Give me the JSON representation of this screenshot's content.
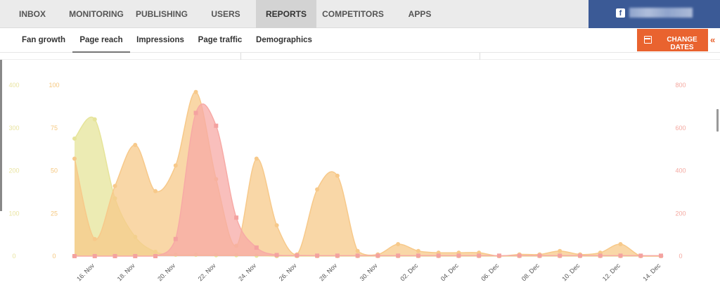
{
  "top_nav": {
    "tabs": [
      {
        "label": "INBOX",
        "active": false
      },
      {
        "label": "MONITORING",
        "active": false
      },
      {
        "label": "PUBLISHING",
        "active": false
      },
      {
        "label": "USERS",
        "active": false
      },
      {
        "label": "REPORTS",
        "active": true
      },
      {
        "label": "COMPETITORS",
        "active": false
      },
      {
        "label": "APPS",
        "active": false
      }
    ],
    "account": {
      "icon": "facebook-icon",
      "color": "#3b5a96"
    }
  },
  "sub_nav": {
    "tabs": [
      {
        "label": "Fan growth",
        "active": false
      },
      {
        "label": "Page reach",
        "active": true
      },
      {
        "label": "Impressions",
        "active": false
      },
      {
        "label": "Page traffic",
        "active": false
      },
      {
        "label": "Demographics",
        "active": false
      }
    ],
    "change_dates_label": "CHANGE DATES",
    "change_dates_icon": "calendar-icon",
    "collapse_label": "«",
    "accent": "#e9632f"
  },
  "chart_data": {
    "type": "area",
    "x": [
      "15. Nov",
      "16. Nov",
      "17. Nov",
      "18. Nov",
      "19. Nov",
      "20. Nov",
      "21. Nov",
      "22. Nov",
      "23. Nov",
      "24. Nov",
      "25. Nov",
      "26. Nov",
      "27. Nov",
      "28. Nov",
      "29. Nov",
      "30. Nov",
      "01. Dec",
      "02. Dec",
      "03. Dec",
      "04. Dec",
      "05. Dec",
      "06. Dec",
      "07. Dec",
      "08. Dec",
      "09. Dec",
      "10. Dec",
      "11. Dec",
      "12. Dec",
      "13. Dec",
      "14. Dec"
    ],
    "x_tick_labels": [
      "16. Nov",
      "18. Nov",
      "20. Nov",
      "22. Nov",
      "24. Nov",
      "26. Nov",
      "28. Nov",
      "30. Nov",
      "02. Dec",
      "04. Dec",
      "06. Dec",
      "08. Dec",
      "10. Dec",
      "12. Dec",
      "14. Dec"
    ],
    "axes": {
      "y_left_outer": {
        "ticks": [
          "0",
          "100",
          "200",
          "300",
          "400"
        ],
        "max": 400,
        "color": "#e9e4a0"
      },
      "y_left_inner": {
        "ticks": [
          "0",
          "25",
          "50",
          "75",
          "100"
        ],
        "max": 100,
        "color": "#f5c77e"
      },
      "y_right": {
        "ticks": [
          "0",
          "200",
          "400",
          "600",
          "800"
        ],
        "max": 800,
        "color": "#f4a8a0"
      }
    },
    "series": [
      {
        "axis": "y_left_outer",
        "color": "#e6e49a",
        "marker": "circle",
        "values": [
          275,
          320,
          135,
          45,
          10,
          3,
          3,
          2,
          2,
          1,
          0,
          0,
          0,
          0,
          0,
          0,
          0,
          0,
          0,
          0,
          0,
          0,
          0,
          0,
          0,
          0,
          0,
          0,
          0,
          0
        ]
      },
      {
        "axis": "y_left_inner",
        "color": "#f7c98a",
        "marker": "circle",
        "values": [
          57,
          10,
          41,
          65,
          38,
          53,
          96,
          45,
          6,
          57,
          18,
          1,
          39,
          47,
          3,
          1,
          7,
          3,
          2,
          2,
          2,
          0,
          1,
          1,
          3,
          1,
          2,
          7,
          0,
          0
        ]
      },
      {
        "axis": "y_right",
        "color": "#f7aaa6",
        "marker": "square",
        "values": [
          0,
          0,
          0,
          0,
          0,
          80,
          670,
          610,
          180,
          40,
          5,
          3,
          2,
          2,
          2,
          2,
          2,
          2,
          2,
          2,
          2,
          2,
          2,
          2,
          2,
          2,
          2,
          2,
          2,
          2
        ]
      }
    ],
    "grid": false,
    "legend": "none"
  }
}
